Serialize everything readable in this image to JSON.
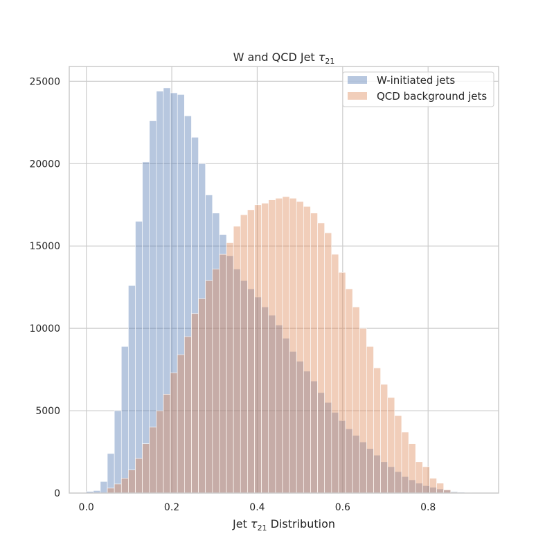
{
  "chart_data": {
    "type": "bar",
    "title_main": "W and QCD Jet ",
    "title_sym": "τ",
    "title_sub": "21",
    "xlabel_pre": "Jet ",
    "xlabel_sym": "τ",
    "xlabel_sub": "21",
    "xlabel_post": " Distribution",
    "ylabel": "",
    "xlim": [
      -0.04,
      0.965
    ],
    "ylim": [
      0,
      25900
    ],
    "xticks": [
      0.0,
      0.2,
      0.4,
      0.6,
      0.8
    ],
    "xtick_labels": [
      "0.0",
      "0.2",
      "0.4",
      "0.6",
      "0.8"
    ],
    "yticks": [
      0,
      5000,
      10000,
      15000,
      20000,
      25000
    ],
    "ytick_labels": [
      "0",
      "5000",
      "10000",
      "15000",
      "20000",
      "25000"
    ],
    "grid": true,
    "legend_placement": "top-right",
    "bin_start": 0.0,
    "bin_width": 0.0164,
    "series": [
      {
        "name": "W-initiated jets",
        "color": "#4c72b0",
        "alpha": 0.4,
        "values": [
          100,
          150,
          700,
          2400,
          5000,
          8900,
          12600,
          16500,
          20100,
          22600,
          24400,
          24600,
          24300,
          24200,
          22900,
          21600,
          20000,
          18100,
          17000,
          15700,
          14400,
          13600,
          12900,
          12400,
          11900,
          11300,
          10800,
          10200,
          9400,
          8600,
          8000,
          7400,
          6800,
          6100,
          5500,
          4900,
          4400,
          3900,
          3500,
          3100,
          2700,
          2300,
          1900,
          1600,
          1300,
          1000,
          800,
          600,
          450,
          350,
          250,
          180,
          100,
          50,
          20,
          5,
          0,
          0
        ]
      },
      {
        "name": "QCD background jets",
        "color": "#dd8452",
        "alpha": 0.4,
        "values": [
          0,
          0,
          0,
          300,
          550,
          900,
          1400,
          2100,
          3000,
          4000,
          5000,
          6000,
          7300,
          8400,
          9500,
          10900,
          11800,
          12900,
          13600,
          14500,
          15200,
          16200,
          16900,
          17200,
          17500,
          17600,
          17800,
          17900,
          18000,
          17900,
          17700,
          17400,
          17000,
          16400,
          15800,
          14500,
          13400,
          12400,
          11300,
          10000,
          8900,
          7600,
          6600,
          5800,
          4700,
          3700,
          3000,
          1900,
          1600,
          900,
          600,
          200,
          50,
          0,
          0,
          0,
          0,
          0
        ]
      }
    ]
  }
}
